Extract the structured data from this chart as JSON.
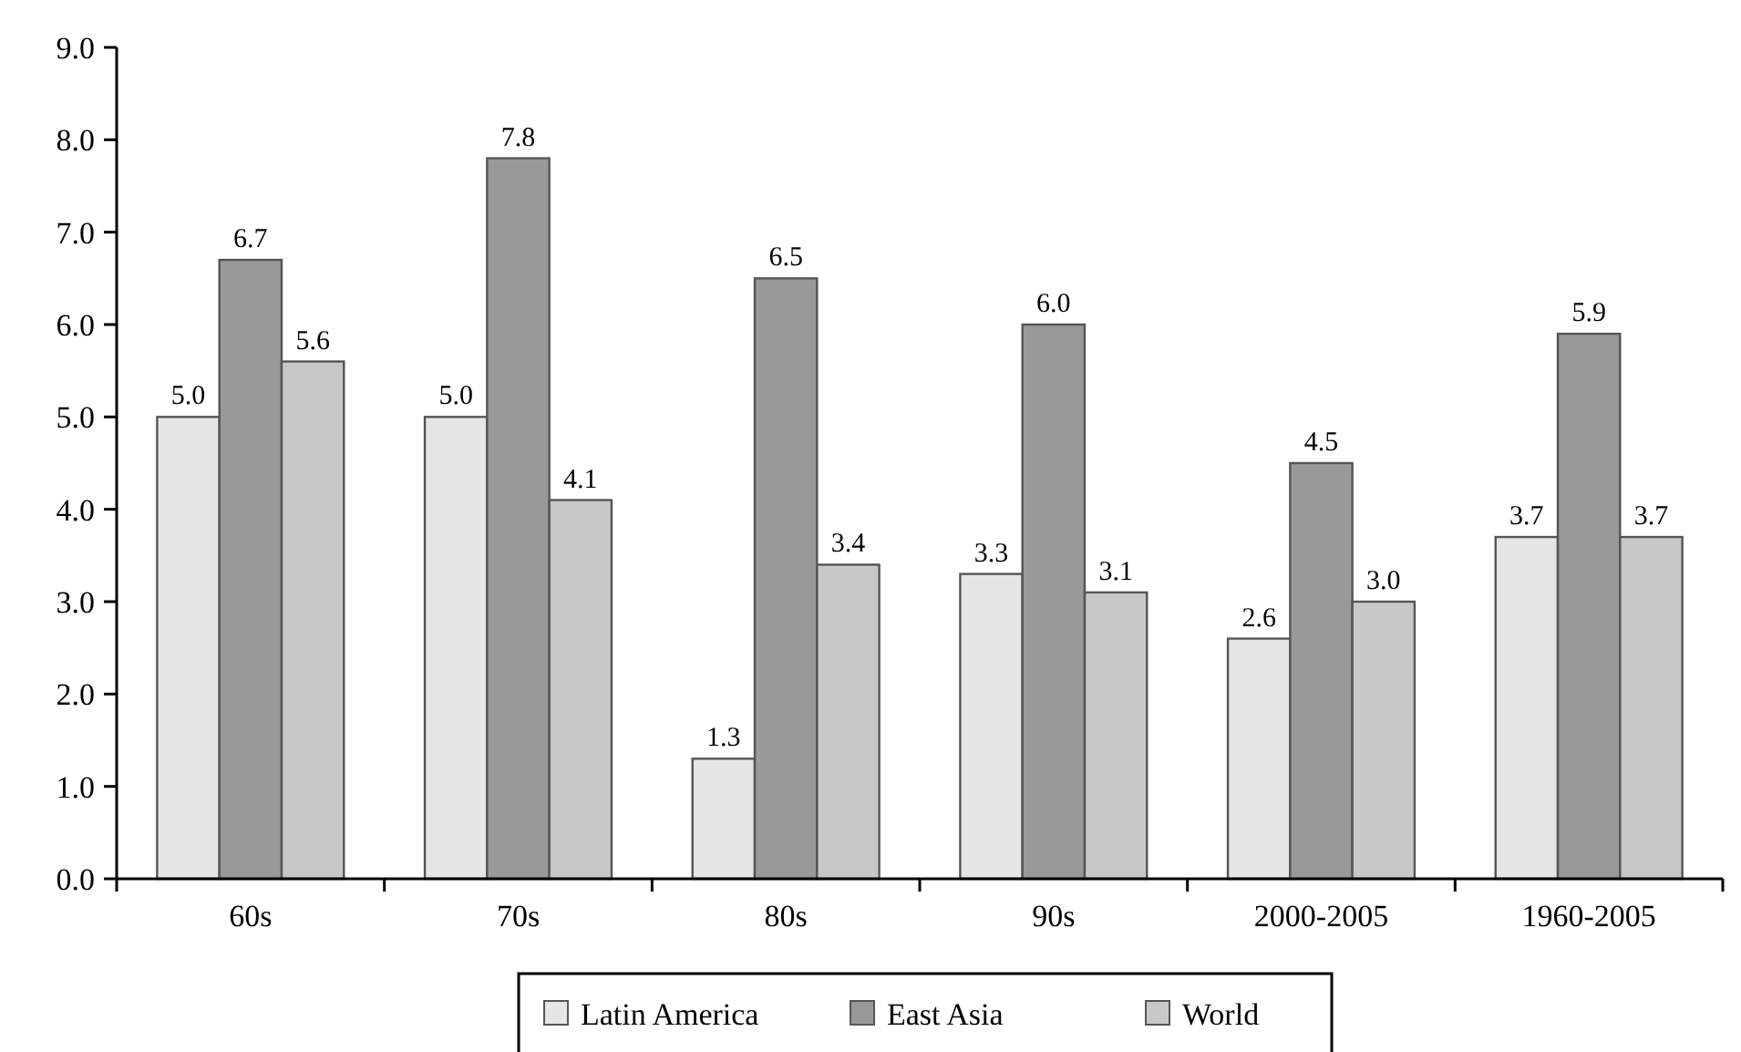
{
  "chart_data": {
    "type": "bar",
    "categories": [
      "60s",
      "70s",
      "80s",
      "90s",
      "2000-2005",
      "1960-2005"
    ],
    "series": [
      {
        "name": "Latin America",
        "color": "#e6e6e6",
        "values": [
          5.0,
          5.0,
          1.3,
          3.3,
          2.6,
          3.7
        ],
        "value_labels": [
          "5.0",
          "5.0",
          "1.3",
          "3.3",
          "2.6",
          "3.7"
        ]
      },
      {
        "name": "East Asia",
        "color": "#999999",
        "values": [
          6.7,
          7.8,
          6.5,
          6.0,
          4.5,
          5.9
        ],
        "value_labels": [
          "6.7",
          "7.8",
          "6.5",
          "6.0",
          "4.5",
          "5.9"
        ]
      },
      {
        "name": "World",
        "color": "#c8c8c8",
        "values": [
          5.6,
          4.1,
          3.4,
          3.1,
          3.0,
          3.7
        ],
        "value_labels": [
          "5.6",
          "4.1",
          "3.4",
          "3.1",
          "3.0",
          "3.7"
        ]
      }
    ],
    "ylim": [
      0,
      9
    ],
    "yticks": [
      {
        "value": 0,
        "label": "0.0"
      },
      {
        "value": 1,
        "label": "1.0"
      },
      {
        "value": 2,
        "label": "2.0"
      },
      {
        "value": 3,
        "label": "3.0"
      },
      {
        "value": 4,
        "label": "4.0"
      },
      {
        "value": 5,
        "label": "5.0"
      },
      {
        "value": 6,
        "label": "6.0"
      },
      {
        "value": 7,
        "label": "7.0"
      },
      {
        "value": 8,
        "label": "8.0"
      },
      {
        "value": 9,
        "label": "9.0"
      }
    ],
    "grid": false,
    "legend": "bottom"
  }
}
